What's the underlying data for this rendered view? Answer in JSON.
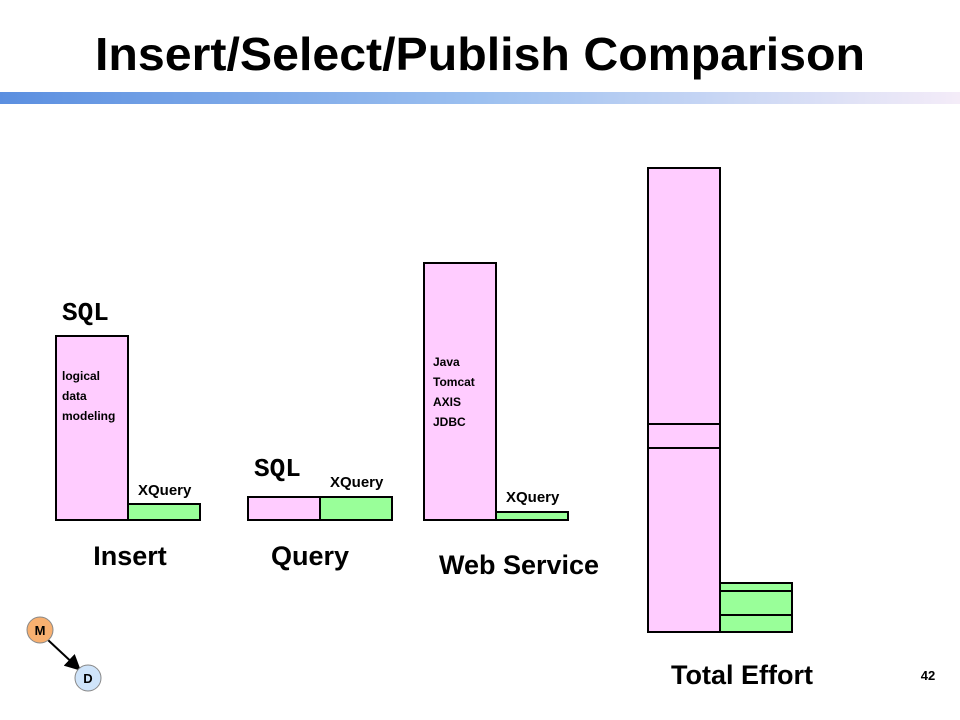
{
  "header": {
    "title": "Insert/Select/Publish Comparison"
  },
  "groups": [
    {
      "label": "Insert",
      "sql_label": "SQL",
      "sql_notes": [
        "logical",
        "data",
        "modeling"
      ],
      "xquery_label": "XQuery"
    },
    {
      "label": "Query",
      "sql_label": "SQL",
      "xquery_label": "XQuery"
    },
    {
      "label": "Web Service",
      "sql_notes": [
        "Java",
        "Tomcat",
        "AXIS",
        "JDBC"
      ],
      "xquery_label": "XQuery"
    },
    {
      "label": "Total Effort"
    }
  ],
  "nodes": [
    {
      "label": "M"
    },
    {
      "label": "D"
    }
  ],
  "page_number": "42"
}
